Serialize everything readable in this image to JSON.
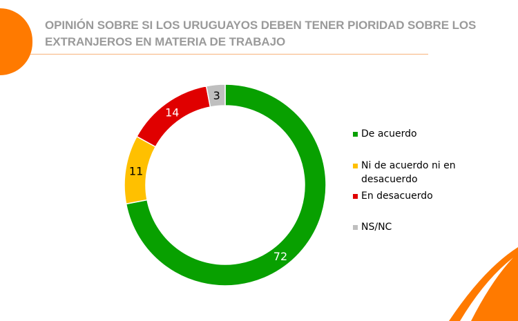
{
  "title": "OPINIÓN SOBRE SI LOS URUGUAYOS DEBEN TENER PIORIDAD SOBRE LOS EXTRANJEROS EN MATERIA DE TRABAJO",
  "chart_data": {
    "type": "pie",
    "variant": "donut",
    "title": "OPINIÓN SOBRE SI LOS URUGUAYOS DEBEN TENER PIORIDAD SOBRE LOS EXTRANJEROS EN MATERIA DE TRABAJO",
    "categories": [
      "De acuerdo",
      "Ni de acuerdo ni en desacuerdo",
      "En desacuerdo",
      "NS/NC"
    ],
    "values": [
      72,
      11,
      14,
      3
    ],
    "labels": [
      "72",
      "11",
      "14",
      "3"
    ],
    "colors": [
      "#08a000",
      "#ffc000",
      "#e00000",
      "#bfbfbf"
    ],
    "legend_position": "right"
  },
  "colors": {
    "accent": "#ff7a00",
    "title": "#9a9a9a"
  }
}
